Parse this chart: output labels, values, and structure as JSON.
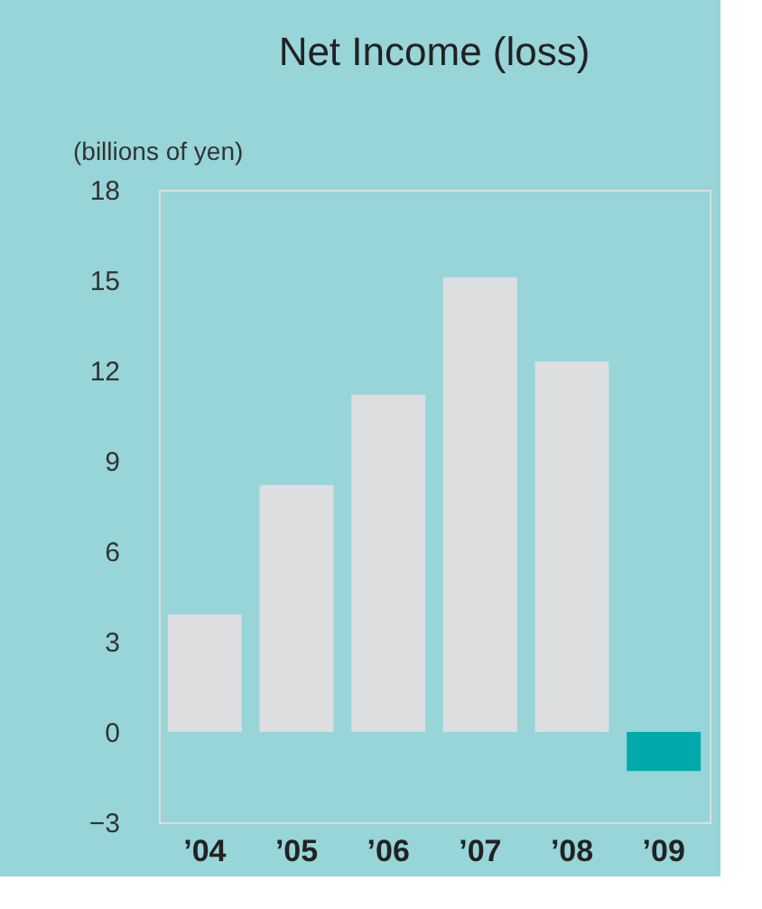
{
  "chart_data": {
    "type": "bar",
    "title": "Net Income (loss)",
    "ylabel": "(billions of yen)",
    "categories": [
      "’04",
      "’05",
      "’06",
      "’07",
      "’08",
      "’09"
    ],
    "values": [
      3.9,
      8.2,
      11.2,
      15.1,
      12.3,
      -1.3
    ],
    "colors": [
      "#dcdee0",
      "#dcdee0",
      "#dcdee0",
      "#dcdee0",
      "#dcdee0",
      "#00aaaa"
    ],
    "ylim": [
      -3,
      18
    ],
    "yticks": [
      -3,
      0,
      3,
      6,
      9,
      12,
      15,
      18
    ],
    "grid": false
  }
}
